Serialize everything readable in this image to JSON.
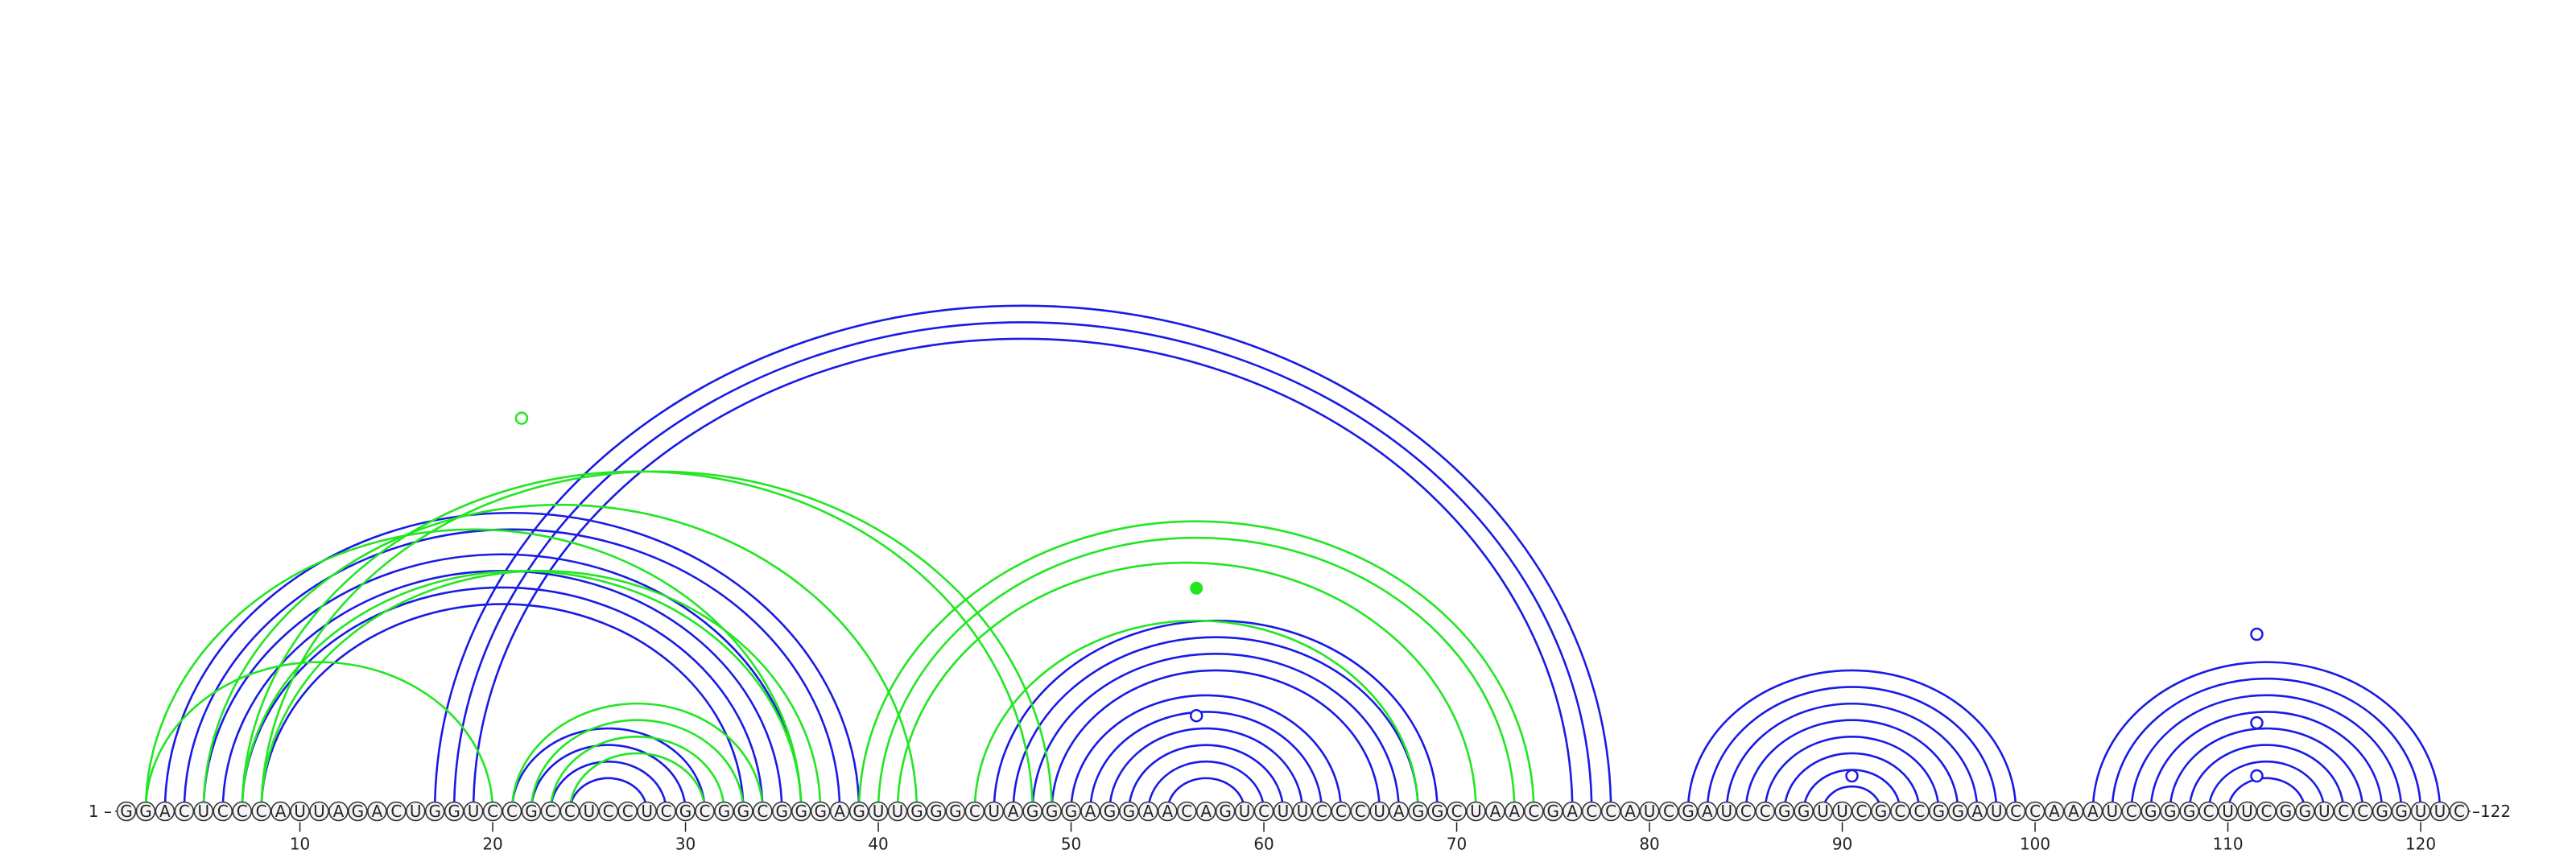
{
  "sequence": "GGACUCCCAUUAGACUGGUCCGCCUCCUCGCGGCGGGAGUUGGGCUAGGGAGGAACAGUCUUCCCUAGGCUAACGACCAUCGAUCCGGUUCGCCGGAUCCAAAUCGGGCUUCGGUCCGGUUC",
  "start_label": "1 –",
  "end_label": "–122",
  "ticks": [
    10,
    20,
    30,
    40,
    50,
    60,
    70,
    80,
    90,
    100,
    110,
    120
  ],
  "colors": {
    "blue": "#1a1ae6",
    "green": "#22e622",
    "nucleotide_fill": "#f4f4f4",
    "nucleotide_stroke": "#333333",
    "text": "#222222"
  },
  "pairs_blue": [
    [
      5,
      36
    ],
    [
      6,
      35
    ],
    [
      7,
      34
    ],
    [
      8,
      33
    ],
    [
      3,
      39
    ],
    [
      4,
      38
    ],
    [
      17,
      78
    ],
    [
      18,
      77
    ],
    [
      19,
      76
    ],
    [
      21,
      31
    ],
    [
      22,
      30
    ],
    [
      23,
      29
    ],
    [
      24,
      28
    ],
    [
      46,
      69
    ],
    [
      47,
      68
    ],
    [
      48,
      67
    ],
    [
      49,
      66
    ],
    [
      50,
      64
    ],
    [
      51,
      63
    ],
    [
      52,
      62
    ],
    [
      53,
      61
    ],
    [
      54,
      60
    ],
    [
      55,
      59
    ],
    [
      82,
      99
    ],
    [
      83,
      98
    ],
    [
      84,
      97
    ],
    [
      85,
      96
    ],
    [
      86,
      95
    ],
    [
      87,
      94
    ],
    [
      88,
      93
    ],
    [
      89,
      92
    ],
    [
      103,
      121
    ],
    [
      104,
      120
    ],
    [
      105,
      119
    ],
    [
      106,
      118
    ],
    [
      107,
      117
    ],
    [
      108,
      116
    ],
    [
      109,
      115
    ],
    [
      110,
      114
    ]
  ],
  "pairs_green": [
    [
      2,
      20
    ],
    [
      2,
      36
    ],
    [
      5,
      42
    ],
    [
      7,
      36
    ],
    [
      7,
      48
    ],
    [
      8,
      37
    ],
    [
      8,
      49
    ],
    [
      21,
      34
    ],
    [
      22,
      33
    ],
    [
      23,
      32
    ],
    [
      24,
      31
    ],
    [
      39,
      74
    ],
    [
      40,
      73
    ],
    [
      41,
      71
    ],
    [
      45,
      68
    ]
  ],
  "markers_open": [
    {
      "x": 21.5,
      "h": 0.555,
      "color": "green"
    },
    {
      "x": 56.5,
      "h": 0.135,
      "color": "blue"
    },
    {
      "x": 90.5,
      "h": 0.05,
      "color": "blue"
    },
    {
      "x": 111.5,
      "h": 0.25,
      "color": "blue"
    },
    {
      "x": 111.5,
      "h": 0.125,
      "color": "blue"
    },
    {
      "x": 111.5,
      "h": 0.05,
      "color": "blue"
    }
  ],
  "markers_filled": [
    {
      "x": 56.5,
      "h": 0.315,
      "color": "green"
    }
  ]
}
